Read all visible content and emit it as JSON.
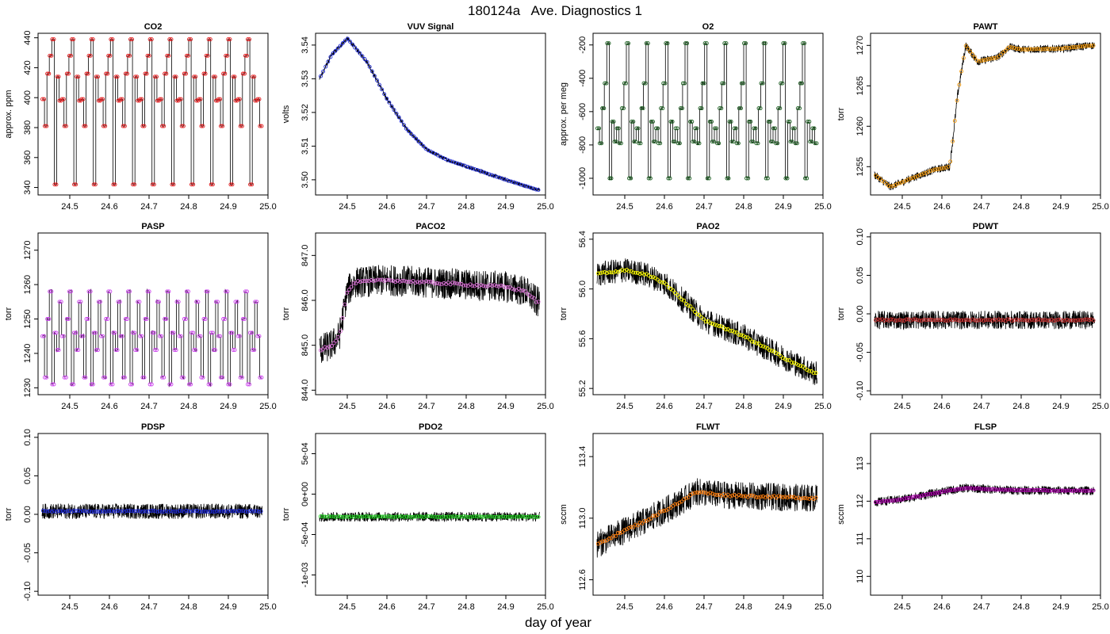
{
  "page": {
    "title": "180124a   Ave. Diagnostics 1",
    "xlabel": "day of year"
  },
  "chart_data": [
    {
      "type": "line",
      "title": "CO2",
      "ylabel": "approx. ppm",
      "xlim": [
        24.42,
        25.0
      ],
      "ylim": [
        335,
        443
      ],
      "xticks": [
        24.5,
        24.6,
        24.7,
        24.8,
        24.9,
        25.0
      ],
      "yticks": [
        340,
        360,
        380,
        400,
        420,
        440
      ],
      "ytick_labels": [
        "340",
        "360",
        "380",
        "400",
        "420",
        "440"
      ],
      "point_color": "#e41a1c",
      "pattern": "square_cycle",
      "levels": [
        399,
        381,
        416,
        428,
        439,
        342,
        414,
        398
      ],
      "noise": 0,
      "n_points": 90
    },
    {
      "type": "line",
      "title": "VUV Signal",
      "ylabel": "volts",
      "xlim": [
        24.42,
        25.0
      ],
      "ylim": [
        3.4955,
        3.5435
      ],
      "xticks": [
        24.5,
        24.6,
        24.7,
        24.8,
        24.9,
        25.0
      ],
      "yticks": [
        3.5,
        3.51,
        3.52,
        3.53,
        3.54
      ],
      "ytick_labels": [
        "3.50",
        "3.51",
        "3.52",
        "3.53",
        "3.54"
      ],
      "point_color": "#1f2bd6",
      "pattern": "smooth",
      "x_key": [
        24.43,
        24.46,
        24.5,
        24.55,
        24.6,
        24.65,
        24.7,
        24.75,
        24.8,
        24.85,
        24.9,
        24.98
      ],
      "y_key": [
        3.53,
        3.537,
        3.542,
        3.535,
        3.524,
        3.515,
        3.509,
        3.506,
        3.504,
        3.502,
        3.5,
        3.497
      ],
      "noise": 0.0006,
      "n_points": 90
    },
    {
      "type": "line",
      "title": "O2",
      "ylabel": "approx. per meg",
      "xlim": [
        24.42,
        25.0
      ],
      "ylim": [
        -1100,
        -130
      ],
      "xticks": [
        24.5,
        24.6,
        24.7,
        24.8,
        24.9,
        25.0
      ],
      "yticks": [
        -1000,
        -800,
        -600,
        -400,
        -200
      ],
      "ytick_labels": [
        "-1000",
        "-800",
        "-600",
        "-400",
        "-200"
      ],
      "point_color": "#1b5e20",
      "pattern": "square_cycle",
      "levels": [
        -700,
        -790,
        -580,
        -430,
        -190,
        -1000,
        -660,
        -780
      ],
      "noise": 15,
      "n_points": 90
    },
    {
      "type": "line",
      "title": "PAWT",
      "ylabel": "torr",
      "xlim": [
        24.42,
        25.0
      ],
      "ylim": [
        1251.5,
        1271.5
      ],
      "xticks": [
        24.5,
        24.6,
        24.7,
        24.8,
        24.9,
        25.0
      ],
      "yticks": [
        1255,
        1260,
        1265,
        1270
      ],
      "ytick_labels": [
        "1255",
        "1260",
        "1265",
        "1270"
      ],
      "point_color": "#f39c12",
      "pattern": "smooth",
      "x_key": [
        24.43,
        24.47,
        24.52,
        24.58,
        24.62,
        24.64,
        24.66,
        24.69,
        24.74,
        24.77,
        24.8,
        24.9,
        24.98
      ],
      "y_key": [
        1254,
        1252.5,
        1253.5,
        1254.6,
        1255,
        1264,
        1270,
        1268,
        1268.5,
        1269.8,
        1269.5,
        1269.6,
        1270
      ],
      "noise": 0.5,
      "n_points": 100
    },
    {
      "type": "line",
      "title": "PASP",
      "ylabel": "torr",
      "xlim": [
        24.42,
        25.0
      ],
      "ylim": [
        1228,
        1275
      ],
      "xticks": [
        24.5,
        24.6,
        24.7,
        24.8,
        24.9,
        25.0
      ],
      "yticks": [
        1230,
        1240,
        1250,
        1260,
        1270
      ],
      "ytick_labels": [
        "1230",
        "1240",
        "1250",
        "1260",
        "1270"
      ],
      "point_color": "#cc44ee",
      "pattern": "square_cycle",
      "levels": [
        1245,
        1233,
        1250,
        1258,
        1231,
        1246,
        1241,
        1255
      ],
      "noise": 1.2,
      "n_points": 90
    },
    {
      "type": "line",
      "title": "PACO2",
      "ylabel": "torr",
      "xlim": [
        24.42,
        25.0
      ],
      "ylim": [
        843.9,
        847.5
      ],
      "xticks": [
        24.5,
        24.6,
        24.7,
        24.8,
        24.9,
        25.0
      ],
      "yticks": [
        844.0,
        845.0,
        846.0,
        847.0
      ],
      "ytick_labels": [
        "844.0",
        "845.0",
        "846.0",
        "847.0"
      ],
      "point_color": "#da70d6",
      "pattern": "smooth",
      "x_key": [
        24.43,
        24.46,
        24.48,
        24.5,
        24.52,
        24.6,
        24.7,
        24.8,
        24.9,
        24.95,
        24.98
      ],
      "y_key": [
        844.9,
        845.0,
        845.2,
        846.2,
        846.4,
        846.45,
        846.4,
        846.35,
        846.3,
        846.2,
        845.95
      ],
      "noise": 0.35,
      "n_points": 100
    },
    {
      "type": "line",
      "title": "PAO2",
      "ylabel": "torr",
      "xlim": [
        24.42,
        25.0
      ],
      "ylim": [
        55.15,
        56.45
      ],
      "xticks": [
        24.5,
        24.6,
        24.7,
        24.8,
        24.9,
        25.0
      ],
      "yticks": [
        55.2,
        55.6,
        56.0,
        56.4
      ],
      "ytick_labels": [
        "55.2",
        "55.6",
        "56.0",
        "56.4"
      ],
      "point_color": "#ffff00",
      "pattern": "smooth",
      "x_key": [
        24.43,
        24.5,
        24.55,
        24.6,
        24.65,
        24.7,
        24.8,
        24.9,
        24.98
      ],
      "y_key": [
        56.12,
        56.15,
        56.12,
        56.05,
        55.9,
        55.75,
        55.62,
        55.45,
        55.32
      ],
      "noise": 0.1,
      "n_points": 100
    },
    {
      "type": "line",
      "title": "PDWT",
      "ylabel": "torr",
      "xlim": [
        24.42,
        25.0
      ],
      "ylim": [
        -0.105,
        0.105
      ],
      "xticks": [
        24.5,
        24.6,
        24.7,
        24.8,
        24.9,
        25.0
      ],
      "yticks": [
        -0.1,
        -0.05,
        0.0,
        0.05,
        0.1
      ],
      "ytick_labels": [
        "-0.10",
        "-0.05",
        "0.00",
        "0.05",
        "0.10"
      ],
      "point_color": "#cc3333",
      "pattern": "smooth",
      "x_key": [
        24.43,
        24.98
      ],
      "y_key": [
        -0.008,
        -0.008
      ],
      "noise": 0.012,
      "n_points": 100
    },
    {
      "type": "line",
      "title": "PDSP",
      "ylabel": "torr",
      "xlim": [
        24.42,
        25.0
      ],
      "ylim": [
        -0.105,
        0.105
      ],
      "xticks": [
        24.5,
        24.6,
        24.7,
        24.8,
        24.9,
        25.0
      ],
      "yticks": [
        -0.1,
        -0.05,
        0.0,
        0.05,
        0.1
      ],
      "ytick_labels": [
        "-0.10",
        "-0.05",
        "0.00",
        "0.05",
        "0.10"
      ],
      "point_color": "#1f2bd6",
      "pattern": "smooth",
      "x_key": [
        24.43,
        24.98
      ],
      "y_key": [
        0.004,
        0.004
      ],
      "noise": 0.01,
      "n_points": 100
    },
    {
      "type": "line",
      "title": "PDO2",
      "ylabel": "torr",
      "xlim": [
        24.42,
        25.0
      ],
      "ylim": [
        -0.00125,
        0.00075
      ],
      "xticks": [
        24.5,
        24.6,
        24.7,
        24.8,
        24.9,
        25.0
      ],
      "yticks": [
        -0.001,
        -0.0005,
        0,
        0.0005
      ],
      "ytick_labels": [
        "-1e-03",
        "-5e-04",
        "0e+00",
        "5e-04"
      ],
      "point_color": "#22cc22",
      "pattern": "smooth",
      "x_key": [
        24.43,
        24.98
      ],
      "y_key": [
        -0.00028,
        -0.00028
      ],
      "noise": 6e-05,
      "n_points": 100
    },
    {
      "type": "line",
      "title": "FLWT",
      "ylabel": "sccm",
      "xlim": [
        24.42,
        25.0
      ],
      "ylim": [
        112.5,
        113.55
      ],
      "xticks": [
        24.5,
        24.6,
        24.7,
        24.8,
        24.9,
        25.0
      ],
      "yticks": [
        112.6,
        113.0,
        113.4
      ],
      "ytick_labels": [
        "112.6",
        "113.0",
        "113.4"
      ],
      "point_color": "#ff7f0e",
      "pattern": "smooth",
      "x_key": [
        24.43,
        24.5,
        24.55,
        24.6,
        24.65,
        24.68,
        24.75,
        24.85,
        24.98
      ],
      "y_key": [
        112.83,
        112.92,
        112.98,
        113.05,
        113.12,
        113.17,
        113.15,
        113.14,
        113.13
      ],
      "noise": 0.09,
      "n_points": 100
    },
    {
      "type": "line",
      "title": "FLSP",
      "ylabel": "sccm",
      "xlim": [
        24.42,
        25.0
      ],
      "ylim": [
        109.5,
        113.8
      ],
      "xticks": [
        24.5,
        24.6,
        24.7,
        24.8,
        24.9,
        25.0
      ],
      "yticks": [
        110,
        111,
        112,
        113
      ],
      "ytick_labels": [
        "110",
        "111",
        "112",
        "113"
      ],
      "point_color": "#aa00aa",
      "pattern": "smooth",
      "x_key": [
        24.43,
        24.5,
        24.6,
        24.66,
        24.75,
        24.9,
        24.98
      ],
      "y_key": [
        111.97,
        112.05,
        112.25,
        112.35,
        112.3,
        112.28,
        112.28
      ],
      "noise": 0.12,
      "n_points": 100
    }
  ]
}
